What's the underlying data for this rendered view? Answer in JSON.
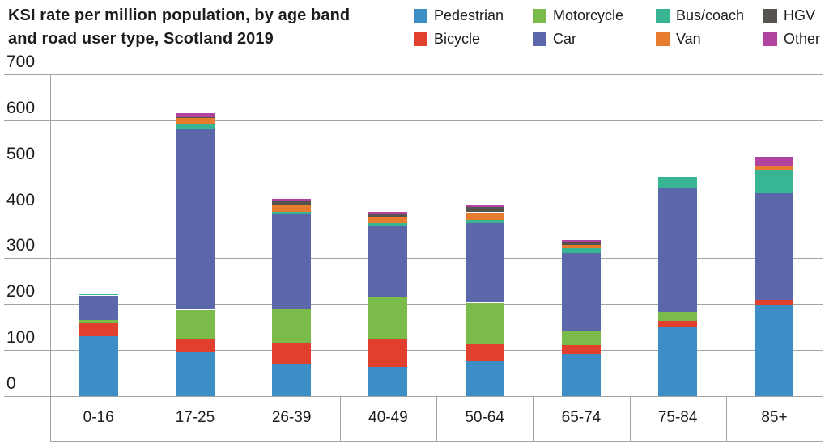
{
  "title_lines": [
    "KSI rate per million population, by age band",
    "and road user type, Scotland 2019"
  ],
  "chart_data": {
    "type": "bar",
    "stacked": true,
    "title": "KSI rate per million population, by age band and road user type, Scotland 2019",
    "categories": [
      "0-16",
      "17-25",
      "26-39",
      "40-49",
      "50-64",
      "65-74",
      "75-84",
      "85+"
    ],
    "series": [
      {
        "name": "Pedestrian",
        "color": "#3d8ec7",
        "values": [
          130,
          96,
          71,
          63,
          77,
          92,
          151,
          199
        ]
      },
      {
        "name": "Bicycle",
        "color": "#e2402f",
        "values": [
          29,
          27,
          45,
          62,
          37,
          19,
          13,
          10
        ]
      },
      {
        "name": "Motorcycle",
        "color": "#7bbb4a",
        "values": [
          7,
          66,
          74,
          90,
          89,
          29,
          19,
          0
        ]
      },
      {
        "name": "Car",
        "color": "#5b67a9",
        "values": [
          53,
          393,
          206,
          154,
          174,
          172,
          271,
          233
        ]
      },
      {
        "name": "Bus/coach",
        "color": "#38b592",
        "values": [
          2,
          11,
          5,
          7,
          7,
          10,
          23,
          50
        ]
      },
      {
        "name": "Van",
        "color": "#e87c2e",
        "values": [
          0,
          12,
          16,
          12,
          16,
          7,
          0,
          9
        ]
      },
      {
        "name": "HGV",
        "color": "#56524e",
        "values": [
          0,
          2,
          7,
          7,
          12,
          5,
          0,
          0
        ]
      },
      {
        "name": "Other",
        "color": "#b2439e",
        "values": [
          0,
          9,
          5,
          6,
          5,
          5,
          0,
          19
        ]
      }
    ],
    "legend_order": [
      "Pedestrian",
      "Motorcycle",
      "Bus/coach",
      "HGV",
      "Bicycle",
      "Car",
      "Van",
      "Other"
    ],
    "legend_position": "top-right",
    "ylim": [
      0,
      700
    ],
    "yticks": [
      0,
      100,
      200,
      300,
      400,
      500,
      600,
      700
    ],
    "grid": "horizontal",
    "xlabel": "",
    "ylabel": ""
  },
  "colors": {
    "text": "#1d1d1b",
    "gridline": "#a3a3a3",
    "background": "#ffffff"
  }
}
